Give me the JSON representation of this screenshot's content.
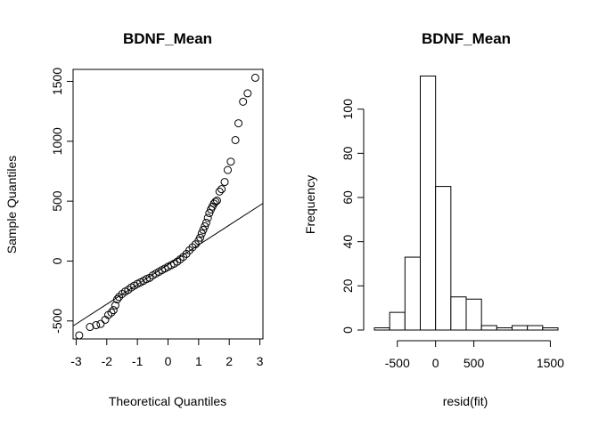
{
  "chart_data": [
    {
      "type": "scatter",
      "title": "BDNF_Mean",
      "xlabel": "Theoretical Quantiles",
      "ylabel": "Sample Quantiles",
      "xlim": [
        -3.1,
        3.1
      ],
      "ylim": [
        -650,
        1600
      ],
      "xticks": [
        -3,
        -2,
        -1,
        0,
        1,
        2,
        3
      ],
      "xtick_labels": [
        "-3",
        "-2",
        "-1",
        "0",
        "1",
        "2",
        "3"
      ],
      "yticks": [
        -500,
        0,
        500,
        1000,
        1500
      ],
      "ytick_labels": [
        "-500",
        "0",
        "500",
        "1000",
        "1500"
      ],
      "reference_line": {
        "intercept": -30,
        "slope": 165
      },
      "points": [
        [
          -2.9,
          -620
        ],
        [
          -2.55,
          -550
        ],
        [
          -2.35,
          -535
        ],
        [
          -2.2,
          -525
        ],
        [
          -2.05,
          -490
        ],
        [
          -1.95,
          -450
        ],
        [
          -1.85,
          -430
        ],
        [
          -1.78,
          -410
        ],
        [
          -1.72,
          -370
        ],
        [
          -1.66,
          -320
        ],
        [
          -1.6,
          -300
        ],
        [
          -1.5,
          -275
        ],
        [
          -1.4,
          -255
        ],
        [
          -1.3,
          -240
        ],
        [
          -1.2,
          -220
        ],
        [
          -1.1,
          -205
        ],
        [
          -1.0,
          -190
        ],
        [
          -0.9,
          -178
        ],
        [
          -0.8,
          -165
        ],
        [
          -0.7,
          -150
        ],
        [
          -0.6,
          -140
        ],
        [
          -0.5,
          -120
        ],
        [
          -0.4,
          -105
        ],
        [
          -0.3,
          -90
        ],
        [
          -0.2,
          -75
        ],
        [
          -0.1,
          -62
        ],
        [
          0.0,
          -48
        ],
        [
          0.1,
          -35
        ],
        [
          0.2,
          -22
        ],
        [
          0.3,
          -5
        ],
        [
          0.4,
          15
        ],
        [
          0.5,
          35
        ],
        [
          0.6,
          60
        ],
        [
          0.7,
          90
        ],
        [
          0.8,
          115
        ],
        [
          0.9,
          140
        ],
        [
          1.0,
          170
        ],
        [
          1.05,
          195
        ],
        [
          1.1,
          230
        ],
        [
          1.15,
          260
        ],
        [
          1.2,
          290
        ],
        [
          1.25,
          320
        ],
        [
          1.3,
          360
        ],
        [
          1.35,
          400
        ],
        [
          1.4,
          430
        ],
        [
          1.45,
          455
        ],
        [
          1.5,
          480
        ],
        [
          1.55,
          495
        ],
        [
          1.6,
          505
        ],
        [
          1.68,
          580
        ],
        [
          1.75,
          600
        ],
        [
          1.85,
          660
        ],
        [
          1.95,
          760
        ],
        [
          2.05,
          830
        ],
        [
          2.2,
          1010
        ],
        [
          2.3,
          1150
        ],
        [
          2.45,
          1330
        ],
        [
          2.6,
          1400
        ],
        [
          2.85,
          1530
        ]
      ]
    },
    {
      "type": "bar",
      "title": "BDNF_Mean",
      "xlabel": "resid(fit)",
      "ylabel": "Frequency",
      "bins": [
        [
          -800,
          -600
        ],
        [
          -600,
          -400
        ],
        [
          -400,
          -200
        ],
        [
          -200,
          0
        ],
        [
          0,
          200
        ],
        [
          200,
          400
        ],
        [
          400,
          600
        ],
        [
          600,
          800
        ],
        [
          800,
          1000
        ],
        [
          1000,
          1200
        ],
        [
          1200,
          1400
        ],
        [
          1400,
          1600
        ]
      ],
      "values": [
        1,
        8,
        33,
        115,
        65,
        15,
        14,
        2,
        1,
        2,
        2,
        1
      ],
      "xlim": [
        -800,
        1600
      ],
      "ylim": [
        0,
        118
      ],
      "xticks": [
        -500,
        0,
        500,
        1500
      ],
      "xtick_labels": [
        "-500",
        "0",
        "500",
        "1500"
      ],
      "yticks": [
        0,
        20,
        40,
        60,
        80,
        100
      ],
      "ytick_labels": [
        "0",
        "20",
        "40",
        "60",
        "80",
        "100"
      ]
    }
  ]
}
